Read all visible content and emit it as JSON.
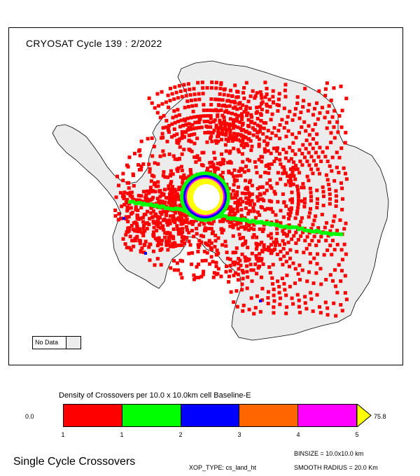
{
  "map": {
    "title": "CRYOSAT Cycle 139 : 2/2022",
    "continent": "Antarctica",
    "land_color": "#ececec",
    "coast_color": "#000000"
  },
  "no_data": {
    "label": "No Data",
    "color": "#ececec"
  },
  "legend": {
    "title": "Density of Crossovers per  10.0 x  10.0km cell Baseline-E",
    "min_label": "0.0",
    "max_label": "75.8",
    "ticks": [
      "1",
      "1",
      "2",
      "3",
      "4",
      "5"
    ],
    "colors": [
      "#ff0000",
      "#00ff00",
      "#0000ff",
      "#ff6600",
      "#ff00ff",
      "#ffff00"
    ]
  },
  "footer": {
    "left_title": "Single Cycle Crossovers",
    "binsize": "BINSIZE = 10.0x10.0 km",
    "xop_type": "XOP_TYPE: cs_land_ht",
    "smooth_radius": "SMOOTH RADIUS =  20.0 Km"
  }
}
